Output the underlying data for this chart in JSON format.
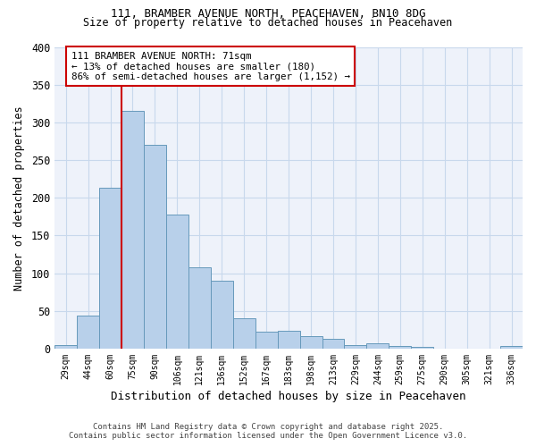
{
  "title_line1": "111, BRAMBER AVENUE NORTH, PEACEHAVEN, BN10 8DG",
  "title_line2": "Size of property relative to detached houses in Peacehaven",
  "xlabel": "Distribution of detached houses by size in Peacehaven",
  "ylabel": "Number of detached properties",
  "categories": [
    "29sqm",
    "44sqm",
    "60sqm",
    "75sqm",
    "90sqm",
    "106sqm",
    "121sqm",
    "136sqm",
    "152sqm",
    "167sqm",
    "183sqm",
    "198sqm",
    "213sqm",
    "229sqm",
    "244sqm",
    "259sqm",
    "275sqm",
    "290sqm",
    "305sqm",
    "321sqm",
    "336sqm"
  ],
  "values": [
    5,
    44,
    213,
    315,
    270,
    178,
    108,
    90,
    40,
    23,
    24,
    16,
    13,
    5,
    7,
    3,
    2,
    0,
    0,
    0,
    4
  ],
  "bar_color": "#b8d0ea",
  "bar_edge_color": "#6699bb",
  "grid_color": "#c8d8ec",
  "bg_color": "#ffffff",
  "ax_bg_color": "#eef2fa",
  "property_label": "111 BRAMBER AVENUE NORTH: 71sqm",
  "annotation_line2": "← 13% of detached houses are smaller (180)",
  "annotation_line3": "86% of semi-detached houses are larger (1,152) →",
  "vline_color": "#cc0000",
  "annotation_box_edge": "#cc0000",
  "annotation_box_fill": "#ffffff",
  "ylim": [
    0,
    400
  ],
  "yticks": [
    0,
    50,
    100,
    150,
    200,
    250,
    300,
    350,
    400
  ],
  "footnote_line1": "Contains HM Land Registry data © Crown copyright and database right 2025.",
  "footnote_line2": "Contains public sector information licensed under the Open Government Licence v3.0.",
  "vline_x_index": 2.5
}
